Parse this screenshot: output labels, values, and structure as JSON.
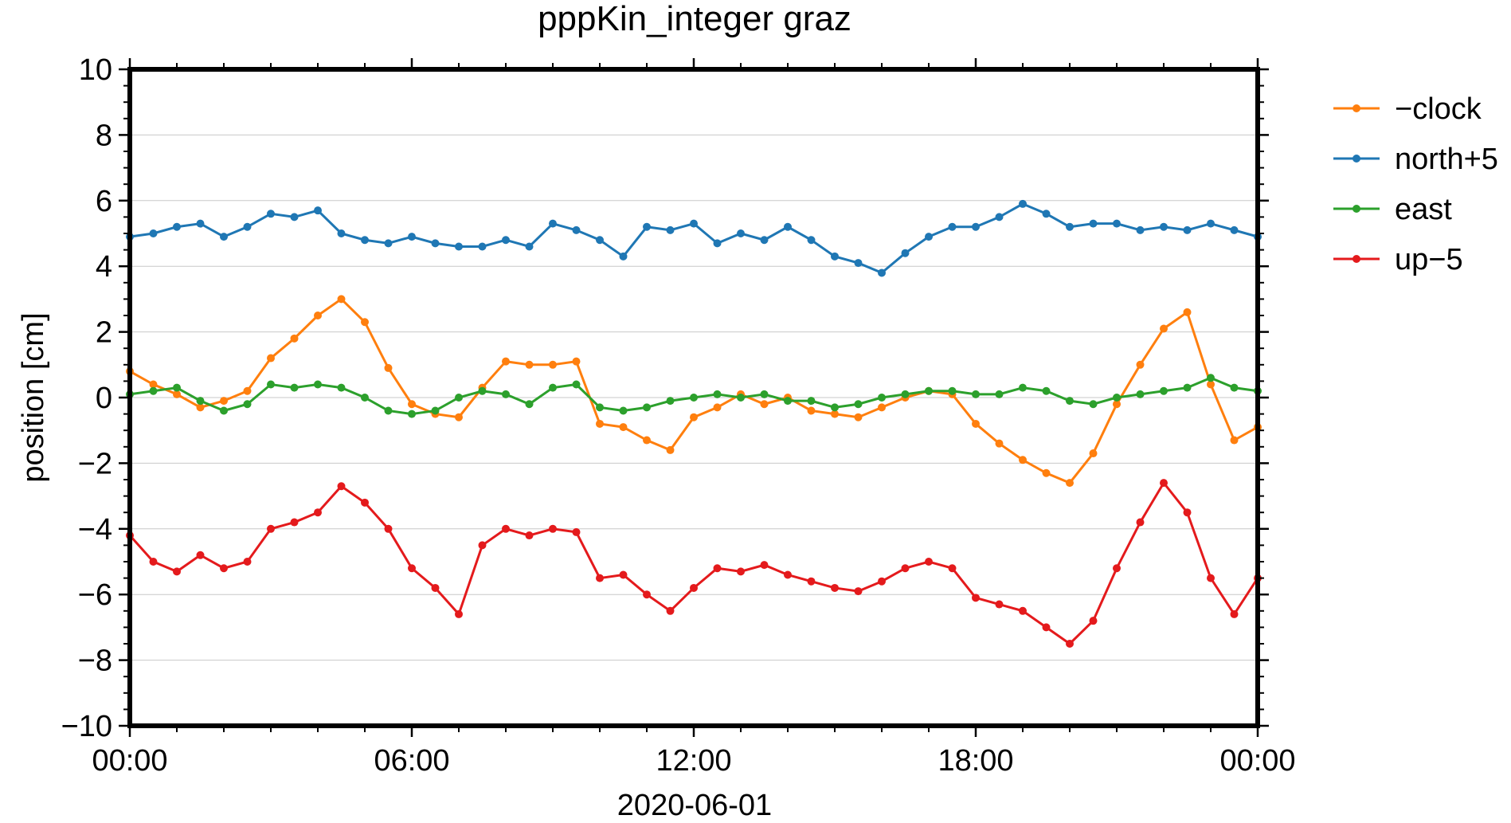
{
  "chart_data": {
    "type": "line",
    "title": "pppKin_integer graz",
    "xlabel": "2020-06-01",
    "ylabel": "position [cm]",
    "xlim": [
      "2020-06-01 00:00",
      "2020-06-02 00:00"
    ],
    "ylim": [
      -10,
      10
    ],
    "x_ticks": [
      "00:00",
      "06:00",
      "12:00",
      "18:00",
      "00:00"
    ],
    "y_ticks": [
      10,
      8,
      6,
      4,
      2,
      0,
      -2,
      -4,
      -6,
      -8,
      -10
    ],
    "y_tick_labels": [
      "10",
      "8",
      "6",
      "4",
      "2",
      "0",
      "−2",
      "−4",
      "−6",
      "−8",
      "−10"
    ],
    "grid": "horizontal",
    "legend_position": "right",
    "x_unit": "hours since 2020-06-01 00:00",
    "series": [
      {
        "name": "−clock",
        "color": "#ff7f0e",
        "x": [
          0,
          0.5,
          1,
          1.5,
          2,
          2.5,
          3,
          3.5,
          4,
          4.5,
          5,
          5.5,
          6,
          6.5,
          7,
          7.5,
          8,
          8.5,
          9,
          9.5,
          10,
          10.5,
          11,
          11.5,
          12,
          12.5,
          13,
          13.5,
          14,
          14.5,
          15,
          15.5,
          16,
          16.5,
          17,
          17.5,
          18,
          18.5,
          19,
          19.5,
          20,
          20.5,
          21,
          21.5,
          22,
          22.5,
          23,
          23.5,
          24
        ],
        "y": [
          0.8,
          0.4,
          0.1,
          -0.3,
          -0.1,
          0.2,
          1.2,
          1.8,
          2.5,
          3.0,
          2.3,
          0.9,
          -0.2,
          -0.5,
          -0.6,
          0.3,
          1.1,
          1.0,
          1.0,
          1.1,
          -0.8,
          -0.9,
          -1.3,
          -1.6,
          -0.6,
          -0.3,
          0.1,
          -0.2,
          0.0,
          -0.4,
          -0.5,
          -0.6,
          -0.3,
          0.0,
          0.2,
          0.1,
          -0.8,
          -1.4,
          -1.9,
          -2.3,
          -2.6,
          -1.7,
          -0.2,
          1.0,
          2.1,
          2.6,
          0.4,
          -1.3,
          -0.9
        ]
      },
      {
        "name": "north+5",
        "color": "#1f77b4",
        "x": [
          0,
          0.5,
          1,
          1.5,
          2,
          2.5,
          3,
          3.5,
          4,
          4.5,
          5,
          5.5,
          6,
          6.5,
          7,
          7.5,
          8,
          8.5,
          9,
          9.5,
          10,
          10.5,
          11,
          11.5,
          12,
          12.5,
          13,
          13.5,
          14,
          14.5,
          15,
          15.5,
          16,
          16.5,
          17,
          17.5,
          18,
          18.5,
          19,
          19.5,
          20,
          20.5,
          21,
          21.5,
          22,
          22.5,
          23,
          23.5,
          24
        ],
        "y": [
          4.9,
          5.0,
          5.2,
          5.3,
          4.9,
          5.2,
          5.6,
          5.5,
          5.7,
          5.0,
          4.8,
          4.7,
          4.9,
          4.7,
          4.6,
          4.6,
          4.8,
          4.6,
          5.3,
          5.1,
          4.8,
          4.3,
          5.2,
          5.1,
          5.3,
          4.7,
          5.0,
          4.8,
          5.2,
          4.8,
          4.3,
          4.1,
          3.8,
          4.4,
          4.9,
          5.2,
          5.2,
          5.5,
          5.9,
          5.6,
          5.2,
          5.3,
          5.3,
          5.1,
          5.2,
          5.1,
          5.3,
          5.1,
          4.9
        ]
      },
      {
        "name": "east",
        "color": "#2ca02c",
        "x": [
          0,
          0.5,
          1,
          1.5,
          2,
          2.5,
          3,
          3.5,
          4,
          4.5,
          5,
          5.5,
          6,
          6.5,
          7,
          7.5,
          8,
          8.5,
          9,
          9.5,
          10,
          10.5,
          11,
          11.5,
          12,
          12.5,
          13,
          13.5,
          14,
          14.5,
          15,
          15.5,
          16,
          16.5,
          17,
          17.5,
          18,
          18.5,
          19,
          19.5,
          20,
          20.5,
          21,
          21.5,
          22,
          22.5,
          23,
          23.5,
          24
        ],
        "y": [
          0.1,
          0.2,
          0.3,
          -0.1,
          -0.4,
          -0.2,
          0.4,
          0.3,
          0.4,
          0.3,
          0.0,
          -0.4,
          -0.5,
          -0.4,
          0.0,
          0.2,
          0.1,
          -0.2,
          0.3,
          0.4,
          -0.3,
          -0.4,
          -0.3,
          -0.1,
          0.0,
          0.1,
          0.0,
          0.1,
          -0.1,
          -0.1,
          -0.3,
          -0.2,
          0.0,
          0.1,
          0.2,
          0.2,
          0.1,
          0.1,
          0.3,
          0.2,
          -0.1,
          -0.2,
          0.0,
          0.1,
          0.2,
          0.3,
          0.6,
          0.3,
          0.2
        ]
      },
      {
        "name": "up−5",
        "color": "#e41a1c",
        "x": [
          0,
          0.5,
          1,
          1.5,
          2,
          2.5,
          3,
          3.5,
          4,
          4.5,
          5,
          5.5,
          6,
          6.5,
          7,
          7.5,
          8,
          8.5,
          9,
          9.5,
          10,
          10.5,
          11,
          11.5,
          12,
          12.5,
          13,
          13.5,
          14,
          14.5,
          15,
          15.5,
          16,
          16.5,
          17,
          17.5,
          18,
          18.5,
          19,
          19.5,
          20,
          20.5,
          21,
          21.5,
          22,
          22.5,
          23,
          23.5,
          24
        ],
        "y": [
          -4.2,
          -5.0,
          -5.3,
          -4.8,
          -5.2,
          -5.0,
          -4.0,
          -3.8,
          -3.5,
          -2.7,
          -3.2,
          -4.0,
          -5.2,
          -5.8,
          -6.6,
          -4.5,
          -4.0,
          -4.2,
          -4.0,
          -4.1,
          -5.5,
          -5.4,
          -6.0,
          -6.5,
          -5.8,
          -5.2,
          -5.3,
          -5.1,
          -5.4,
          -5.6,
          -5.8,
          -5.9,
          -5.6,
          -5.2,
          -5.0,
          -5.2,
          -6.1,
          -6.3,
          -6.5,
          -7.0,
          -7.5,
          -6.8,
          -5.2,
          -3.8,
          -2.6,
          -3.5,
          -5.5,
          -6.6,
          -5.5
        ]
      }
    ]
  }
}
